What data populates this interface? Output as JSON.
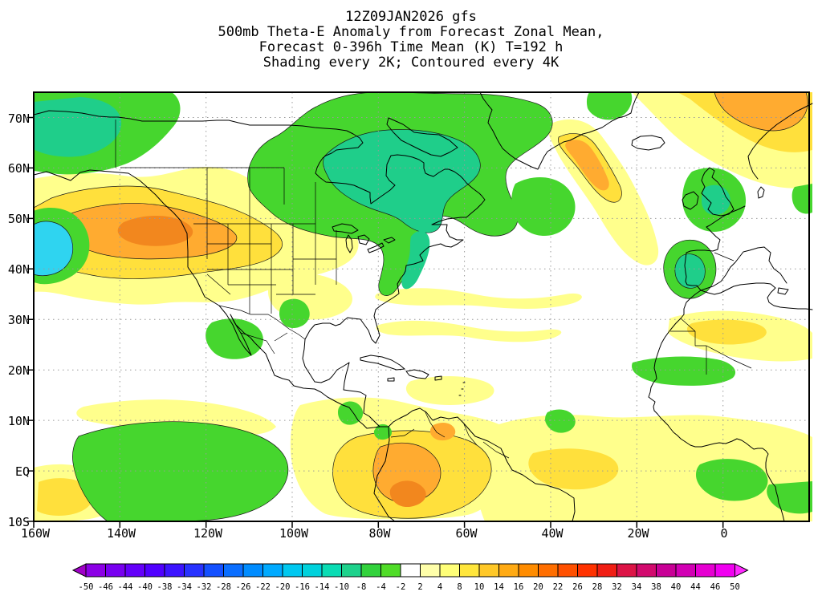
{
  "header": {
    "line1": "12Z09JAN2026 gfs",
    "line2": "500mb Theta-E Anomaly from Forecast Zonal Mean,",
    "line3": "Forecast 0-396h Time Mean (K) T=192 h",
    "line4": "Shading every 2K; Contoured every 4K"
  },
  "map": {
    "lat_labels": [
      "70N",
      "60N",
      "50N",
      "40N",
      "30N",
      "20N",
      "10N",
      "EQ",
      "10S"
    ],
    "lon_labels": [
      "160W",
      "140W",
      "120W",
      "100W",
      "80W",
      "60W",
      "40W",
      "20W",
      "0"
    ]
  },
  "palette": {
    "pale_yellow": "#ffff8c",
    "yellow": "#ffe03c",
    "orange": "#ffab30",
    "deep_orange": "#f2871e",
    "green": "#46d62e",
    "teal_green": "#1fce8a",
    "cyan": "#2fd4f0"
  },
  "colorbar": {
    "labels": [
      "-50",
      "-46",
      "-44",
      "-40",
      "-38",
      "-34",
      "-32",
      "-28",
      "-26",
      "-22",
      "-20",
      "-16",
      "-14",
      "-10",
      "-8",
      "-4",
      "-2",
      "2",
      "4",
      "8",
      "10",
      "14",
      "16",
      "20",
      "22",
      "26",
      "28",
      "32",
      "34",
      "38",
      "40",
      "44",
      "46",
      "50"
    ],
    "colors": [
      "#a000c8",
      "#8c00e6",
      "#7800f0",
      "#6400fa",
      "#5000ff",
      "#3c14ff",
      "#2832ff",
      "#1450ff",
      "#0a6eff",
      "#008cff",
      "#00aaff",
      "#00c8f0",
      "#00d2dc",
      "#0adcb4",
      "#1ed28c",
      "#32d23c",
      "#50dc28",
      "#ffffff",
      "#ffffaa",
      "#ffff78",
      "#ffe63c",
      "#ffc828",
      "#ffaa14",
      "#ff8c00",
      "#ff6e00",
      "#ff5000",
      "#ff3200",
      "#f01e14",
      "#dc1446",
      "#d20a6e",
      "#c80096",
      "#d200b4",
      "#e600d2",
      "#f000f0",
      "#ff28ff"
    ]
  },
  "chart_data": {
    "type": "heatmap",
    "title": "500mb Theta-E Anomaly from Forecast Zonal Mean",
    "subtitle": [
      "Forecast 0-396h Time Mean (K) T=192 h",
      "Shading every 2K; Contoured every 4K"
    ],
    "model_run": "12Z09JAN2026 gfs",
    "units": "K",
    "shading_interval_K": 2,
    "contour_interval_K": 4,
    "x_axis": {
      "label": "longitude",
      "ticks": [
        "160W",
        "140W",
        "120W",
        "100W",
        "80W",
        "60W",
        "40W",
        "20W",
        "0"
      ],
      "range": [
        "160W",
        "20E"
      ]
    },
    "y_axis": {
      "label": "latitude",
      "ticks": [
        "70N",
        "60N",
        "50N",
        "40N",
        "30N",
        "20N",
        "10N",
        "EQ",
        "10S"
      ],
      "range": [
        "10S",
        "75N"
      ]
    },
    "colorbar_levels": [
      -50,
      -46,
      -44,
      -40,
      -38,
      -34,
      -32,
      -28,
      -26,
      -22,
      -20,
      -16,
      -14,
      -10,
      -8,
      -4,
      -2,
      2,
      4,
      8,
      10,
      14,
      16,
      20,
      22,
      26,
      28,
      32,
      34,
      38,
      40,
      44,
      46,
      50
    ],
    "anomaly_features": [
      {
        "sign": "positive",
        "value_K": "+8 to +16",
        "location": "Northeast Pacific and western North America (~150W-110W, 38-58N), orange core near 130W 50N"
      },
      {
        "sign": "negative",
        "value_K": "-6 to -12",
        "location": "Central/eastern Canada, Hudson Bay, Quebec, Labrador (~105W-50W, 45-72N), extending down US east coast"
      },
      {
        "sign": "negative",
        "value_K": "-10 to -16",
        "location": "Far western edge of domain (~160W, 38-50N), cyan core"
      },
      {
        "sign": "negative",
        "value_K": "-6 to -10",
        "location": "Top-left corner near 160W-150W, 62-75N"
      },
      {
        "sign": "positive",
        "value_K": "+10 to +16",
        "location": "Norwegian Sea / top-right corner (~5W-20E, 66-75N)"
      },
      {
        "sign": "positive",
        "value_K": "+8 to +12",
        "location": "East of Greenland toward Iceland (~38W-22W, 53-68N)"
      },
      {
        "sign": "negative",
        "value_K": "-4 to -8",
        "location": "North Atlantic southeast of Greenland (~48W-34W, 46-58N)"
      },
      {
        "sign": "negative",
        "value_K": "-4 to -10",
        "location": "British Isles (~10W-3E, 48-60N) and near Iberia (~13W-3W, 34-45N)"
      },
      {
        "sign": "positive",
        "value_K": "+2 to +6",
        "location": "Yellow streaks across subtropical Atlantic (~80W-30W, 25-37N)"
      },
      {
        "sign": "negative",
        "value_K": "-4 to -8",
        "location": "Equatorial east Pacific (~150W-103W, 10S-8N)"
      },
      {
        "sign": "positive",
        "value_K": "+8 to +16",
        "location": "Northwestern South America / Amazon (~82W-55W, 10S-12N), deep orange near Peru"
      },
      {
        "sign": "positive",
        "value_K": "+2 to +6",
        "location": "Tropical Atlantic and equatorial Africa (~55W-20E, 10S-15N)"
      },
      {
        "sign": "negative",
        "value_K": "-4 to -8",
        "location": "Northwest Mexico (~120W-105W, 23-31N)"
      },
      {
        "sign": "negative",
        "value_K": "-4 to -8",
        "location": "West Africa near 20N (~20W-0) and Gulf of Guinea (~5W-10E, 5N-5S)"
      },
      {
        "sign": "positive",
        "value_K": "+2 to +6",
        "location": "Northwest Africa (~13W-20E, 22-32N)"
      }
    ]
  }
}
